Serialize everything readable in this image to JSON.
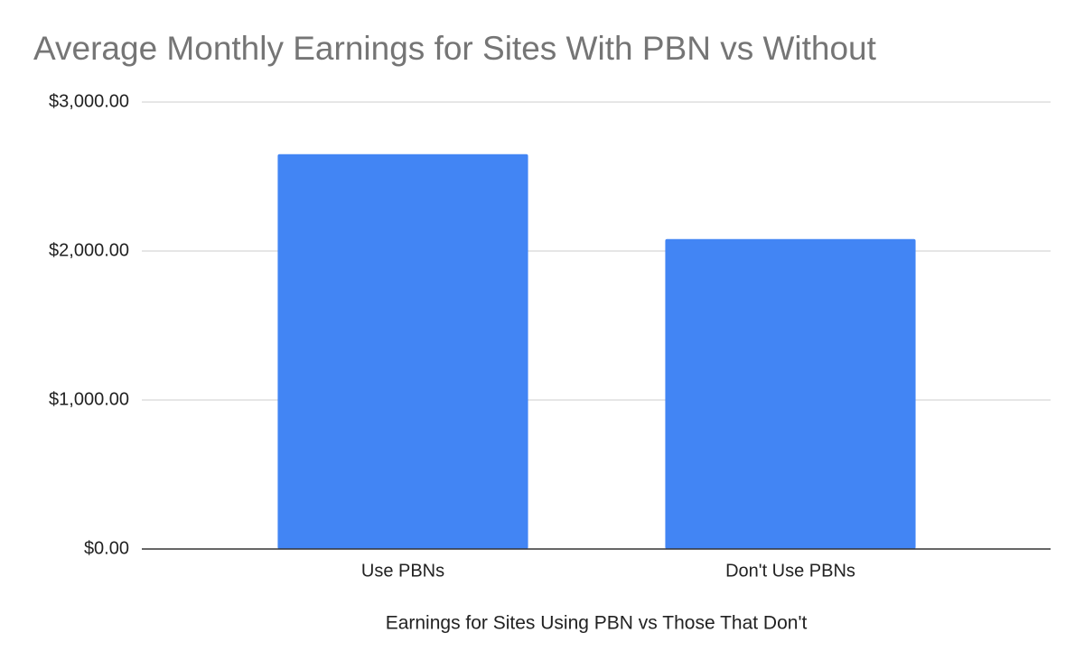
{
  "chart_data": {
    "type": "bar",
    "title": "Average Monthly Earnings for Sites With PBN vs Without",
    "x_label": "Earnings for Sites Using PBN vs Those That Don't",
    "categories": [
      "Use PBNs",
      "Don't Use PBNs"
    ],
    "values": [
      2650,
      2080
    ],
    "color": "#4285f4",
    "ylim": [
      0,
      3000
    ],
    "yticks": [
      {
        "value": 0,
        "label": "$0.00"
      },
      {
        "value": 1000,
        "label": "$1,000.00"
      },
      {
        "value": 2000,
        "label": "$2,000.00"
      },
      {
        "value": 3000,
        "label": "$3,000.00"
      }
    ],
    "grid": true
  }
}
